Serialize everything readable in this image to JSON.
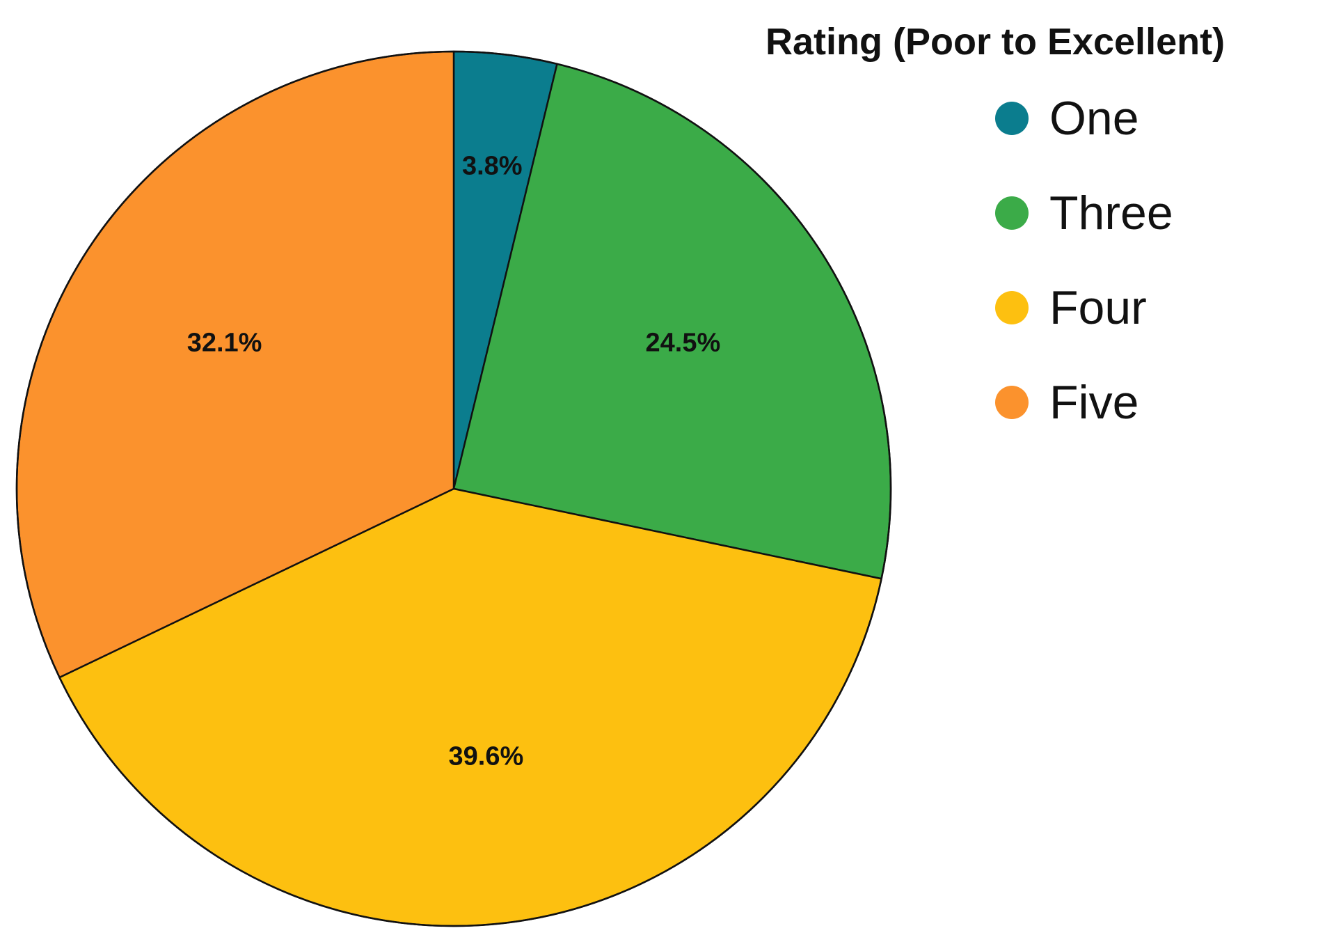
{
  "chart_data": {
    "type": "pie",
    "legend_title": "Rating (Poor to Excellent)",
    "legend_position": "top-right",
    "start_angle": "top",
    "direction": "clockwise",
    "slices": [
      {
        "name": "One",
        "value": 3.8,
        "label": "3.8%",
        "color": "#0b7d8e"
      },
      {
        "name": "Three",
        "value": 24.5,
        "label": "24.5%",
        "color": "#3bab48"
      },
      {
        "name": "Four",
        "value": 39.6,
        "label": "39.6%",
        "color": "#fdc010"
      },
      {
        "name": "Five",
        "value": 32.1,
        "label": "32.1%",
        "color": "#fb922d"
      }
    ]
  }
}
